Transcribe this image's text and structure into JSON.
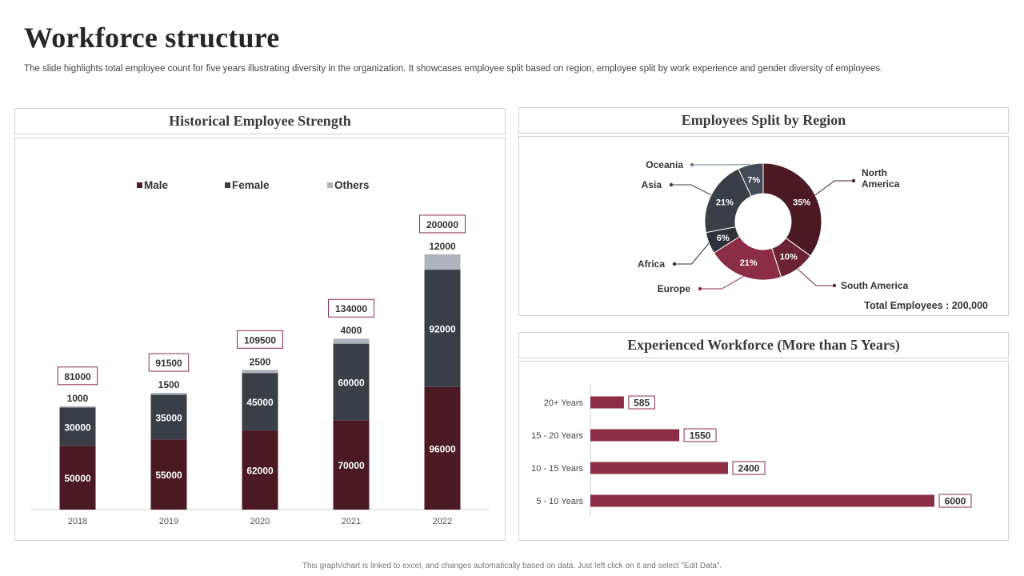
{
  "title": "Workforce  structure",
  "subtitle": "The slide highlights total employee count for five years illustrating diversity in the organization. It showcases employee split based on region, employee split by work experience and gender diversity of employees.",
  "footer": "This graph/chart is linked to excel, and changes automatically based on data. Just left click on it and select “Edit Data”.",
  "colors": {
    "male": "#4a1923",
    "female": "#3a3e47",
    "others": "#aeb3bd",
    "accent": "#8b2e45"
  },
  "panels": {
    "historical": "Historical Employee Strength",
    "region": "Employees Split by Region",
    "experience": "Experienced Workforce (More than 5 Years)"
  },
  "chart_data": [
    {
      "type": "bar",
      "stacked": true,
      "title": "Historical Employee Strength",
      "categories": [
        "2018",
        "2019",
        "2020",
        "2021",
        "2022"
      ],
      "series": [
        {
          "name": "Male",
          "values": [
            50000,
            55000,
            62000,
            70000,
            96000
          ]
        },
        {
          "name": "Female",
          "values": [
            30000,
            35000,
            45000,
            60000,
            92000
          ]
        },
        {
          "name": "Others",
          "values": [
            1000,
            1500,
            2500,
            4000,
            12000
          ]
        }
      ],
      "totals": [
        81000,
        91500,
        109500,
        134000,
        200000
      ],
      "ylim": [
        0,
        210000
      ],
      "legend": "top",
      "grid": false
    },
    {
      "type": "pie",
      "donut": true,
      "title": "Employees Split by Region",
      "labels": [
        "North America",
        "South America",
        "Europe",
        "Africa",
        "Asia",
        "Oceania"
      ],
      "values": [
        35,
        10,
        21,
        6,
        21,
        7
      ],
      "value_labels": [
        "35%",
        "10%",
        "21%",
        "6%",
        "21%",
        "7%"
      ],
      "colors": [
        "#4a1923",
        "#6b2232",
        "#8b2e45",
        "#2f323a",
        "#3a3e47",
        "#444956"
      ],
      "annotation": "Total Employees : 200,000"
    },
    {
      "type": "bar",
      "orientation": "horizontal",
      "title": "Experienced Workforce (More than 5 Years)",
      "categories": [
        "20+ Years",
        "15 - 20 Years",
        "10 - 15 Years",
        "5 - 10 Years"
      ],
      "values": [
        585,
        1550,
        2400,
        6000
      ],
      "xlim": [
        0,
        6000
      ]
    }
  ]
}
